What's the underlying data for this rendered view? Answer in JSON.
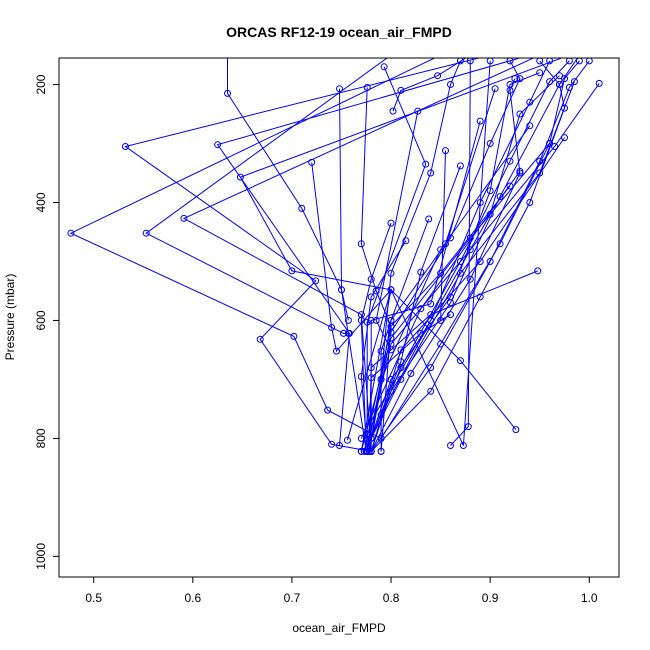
{
  "chart_data": {
    "type": "line",
    "title": "ORCAS RF12-19 ocean_air_FMPD",
    "xlabel": "ocean_air_FMPD",
    "ylabel": "Pressure (mbar)",
    "xlim": [
      0.465,
      1.03
    ],
    "ylim": [
      1035,
      155
    ],
    "y_reversed": true,
    "x_ticks": [
      0.5,
      0.6,
      0.7,
      0.8,
      0.9,
      1.0
    ],
    "x_tick_labels": [
      "0.5",
      "0.6",
      "0.7",
      "0.8",
      "0.9",
      "1.0"
    ],
    "y_ticks": [
      200,
      400,
      600,
      800,
      1000
    ],
    "y_tick_labels": [
      "200",
      "400",
      "600",
      "800",
      "1000"
    ],
    "grid": false,
    "series_color": "#0000ff",
    "marker": "open-circle",
    "series": [
      {
        "points": [
          [
            0.635,
            150
          ],
          [
            0.635,
            215
          ],
          [
            0.71,
            410
          ],
          [
            0.75,
            548
          ],
          [
            0.775,
            822
          ]
        ]
      },
      {
        "points": [
          [
            0.9,
            150
          ],
          [
            0.532,
            305
          ],
          [
            0.724,
            533
          ],
          [
            0.668,
            632
          ],
          [
            0.74,
            810
          ],
          [
            0.78,
            822
          ]
        ]
      },
      {
        "points": [
          [
            0.85,
            150
          ],
          [
            0.477,
            452
          ],
          [
            0.702,
            627
          ],
          [
            0.736,
            752
          ],
          [
            0.79,
            800
          ]
        ]
      },
      {
        "points": [
          [
            0.95,
            150
          ],
          [
            0.591,
            427
          ],
          [
            0.77,
            590
          ],
          [
            0.78,
            822
          ]
        ]
      },
      {
        "points": [
          [
            0.8,
            150
          ],
          [
            0.553,
            452
          ],
          [
            0.752,
            622
          ],
          [
            0.757,
            622
          ]
        ]
      },
      {
        "points": [
          [
            0.94,
            150
          ],
          [
            0.625,
            302
          ],
          [
            0.758,
            622
          ],
          [
            0.748,
            812
          ]
        ]
      },
      {
        "points": [
          [
            0.98,
            150
          ],
          [
            0.648,
            357
          ],
          [
            0.7,
            516
          ],
          [
            0.8,
            548
          ],
          [
            0.87,
            668
          ],
          [
            0.926,
            785
          ]
        ]
      },
      {
        "points": [
          [
            0.748,
            207
          ],
          [
            0.75,
            548
          ],
          [
            0.757,
            600
          ]
        ]
      },
      {
        "points": [
          [
            0.776,
            205
          ],
          [
            0.77,
            470
          ],
          [
            0.785,
            550
          ],
          [
            0.8,
            610
          ],
          [
            0.79,
            822
          ]
        ]
      },
      {
        "points": [
          [
            0.793,
            170
          ],
          [
            0.835,
            335
          ],
          [
            0.776,
            603
          ],
          [
            0.776,
            822
          ]
        ]
      },
      {
        "points": [
          [
            0.72,
            332
          ],
          [
            0.74,
            612
          ],
          [
            0.745,
            652
          ],
          [
            0.8,
            548
          ],
          [
            0.77,
            822
          ]
        ]
      },
      {
        "points": [
          [
            0.802,
            245
          ],
          [
            0.81,
            210
          ],
          [
            0.847,
            185
          ],
          [
            0.88,
            150
          ]
        ]
      },
      {
        "points": [
          [
            0.827,
            245
          ],
          [
            0.785,
            600
          ],
          [
            0.8,
            650
          ]
        ]
      },
      {
        "points": [
          [
            0.855,
            312
          ],
          [
            0.85,
            600
          ],
          [
            0.86,
            590
          ],
          [
            0.83,
            622
          ],
          [
            0.78,
            697
          ],
          [
            0.778,
            822
          ]
        ]
      },
      {
        "points": [
          [
            0.8,
            435
          ],
          [
            0.78,
            530
          ],
          [
            0.77,
            600
          ],
          [
            0.775,
            822
          ]
        ]
      },
      {
        "points": [
          [
            0.815,
            465
          ],
          [
            0.78,
            560
          ],
          [
            0.77,
            695
          ],
          [
            0.775,
            800
          ]
        ]
      },
      {
        "points": [
          [
            0.838,
            428
          ],
          [
            0.8,
            600
          ],
          [
            0.79,
            652
          ],
          [
            0.79,
            822
          ]
        ]
      },
      {
        "points": [
          [
            0.87,
            338
          ],
          [
            0.83,
            518
          ],
          [
            0.81,
            670
          ],
          [
            0.78,
            800
          ]
        ]
      },
      {
        "points": [
          [
            0.89,
            262
          ],
          [
            0.84,
            572
          ],
          [
            0.78,
            600
          ],
          [
            0.78,
            822
          ]
        ]
      },
      {
        "points": [
          [
            0.905,
            207
          ],
          [
            0.855,
            470
          ],
          [
            0.8,
            600
          ],
          [
            0.778,
            822
          ]
        ]
      },
      {
        "points": [
          [
            0.948,
            516
          ],
          [
            0.84,
            590
          ],
          [
            0.78,
            680
          ],
          [
            0.778,
            822
          ]
        ]
      },
      {
        "points": [
          [
            0.92,
            372
          ],
          [
            0.85,
            520
          ],
          [
            0.8,
            610
          ],
          [
            0.773,
            822
          ]
        ]
      },
      {
        "points": [
          [
            0.93,
            347
          ],
          [
            0.83,
            580
          ],
          [
            0.77,
            800
          ]
        ]
      },
      {
        "points": [
          [
            0.94,
            270
          ],
          [
            0.85,
            480
          ],
          [
            0.79,
            700
          ],
          [
            0.776,
            822
          ]
        ]
      },
      {
        "points": [
          [
            0.96,
            300
          ],
          [
            0.88,
            460
          ],
          [
            0.8,
            630
          ],
          [
            0.77,
            822
          ]
        ]
      },
      {
        "points": [
          [
            0.975,
            290
          ],
          [
            0.89,
            500
          ],
          [
            0.81,
            650
          ],
          [
            0.78,
            822
          ]
        ]
      },
      {
        "points": [
          [
            0.985,
            195
          ],
          [
            0.95,
            350
          ],
          [
            0.87,
            520
          ],
          [
            0.81,
            700
          ],
          [
            0.78,
            800
          ]
        ]
      },
      {
        "points": [
          [
            1.01,
            198
          ],
          [
            0.965,
            305
          ],
          [
            0.88,
            480
          ],
          [
            0.8,
            640
          ],
          [
            0.775,
            822
          ]
        ]
      },
      {
        "points": [
          [
            0.925,
            190
          ],
          [
            0.92,
            210
          ],
          [
            0.93,
            350
          ],
          [
            0.88,
            530
          ],
          [
            0.82,
            690
          ],
          [
            0.78,
            822
          ]
        ]
      },
      {
        "points": [
          [
            0.95,
            180
          ],
          [
            0.92,
            200
          ],
          [
            0.9,
            380
          ],
          [
            0.86,
            560
          ],
          [
            0.8,
            700
          ],
          [
            0.775,
            822
          ]
        ]
      },
      {
        "points": [
          [
            0.97,
            185
          ],
          [
            0.93,
            250
          ],
          [
            0.9,
            420
          ],
          [
            0.84,
            600
          ],
          [
            0.78,
            770
          ],
          [
            0.776,
            822
          ]
        ]
      },
      {
        "points": [
          [
            0.99,
            150
          ],
          [
            0.97,
            200
          ],
          [
            0.91,
            390
          ],
          [
            0.86,
            570
          ],
          [
            0.8,
            720
          ],
          [
            0.78,
            822
          ]
        ]
      },
      {
        "points": [
          [
            0.96,
            160
          ],
          [
            0.94,
            230
          ],
          [
            0.89,
            400
          ],
          [
            0.84,
            600
          ],
          [
            0.79,
            760
          ]
        ]
      },
      {
        "points": [
          [
            0.98,
            160
          ],
          [
            0.96,
            195
          ],
          [
            0.92,
            330
          ],
          [
            0.87,
            500
          ],
          [
            0.81,
            680
          ],
          [
            0.78,
            800
          ]
        ]
      },
      {
        "points": [
          [
            0.92,
            160
          ],
          [
            0.93,
            190
          ],
          [
            0.9,
            300
          ],
          [
            0.86,
            460
          ],
          [
            0.8,
            620
          ],
          [
            0.778,
            822
          ]
        ]
      },
      {
        "points": [
          [
            0.87,
            160
          ],
          [
            0.86,
            200
          ],
          [
            0.84,
            350
          ],
          [
            0.8,
            520
          ],
          [
            0.79,
            700
          ]
        ]
      },
      {
        "points": [
          [
            0.88,
            160
          ],
          [
            0.878,
            780
          ],
          [
            0.86,
            812
          ]
        ]
      },
      {
        "points": [
          [
            0.9,
            160
          ],
          [
            0.873,
            812
          ],
          [
            0.8,
            548
          ],
          [
            0.756,
            803
          ]
        ]
      },
      {
        "points": [
          [
            0.95,
            160
          ],
          [
            0.97,
            200
          ],
          [
            0.975,
            240
          ],
          [
            0.94,
            400
          ],
          [
            0.89,
            560
          ],
          [
            0.84,
            720
          ],
          [
            0.78,
            822
          ]
        ]
      },
      {
        "points": [
          [
            0.99,
            160
          ],
          [
            0.975,
            190
          ],
          [
            0.96,
            300
          ],
          [
            0.91,
            470
          ],
          [
            0.85,
            640
          ],
          [
            0.79,
            800
          ]
        ]
      },
      {
        "points": [
          [
            1.0,
            160
          ],
          [
            0.98,
            205
          ],
          [
            0.95,
            330
          ],
          [
            0.9,
            500
          ],
          [
            0.84,
            680
          ],
          [
            0.78,
            822
          ]
        ]
      }
    ]
  }
}
